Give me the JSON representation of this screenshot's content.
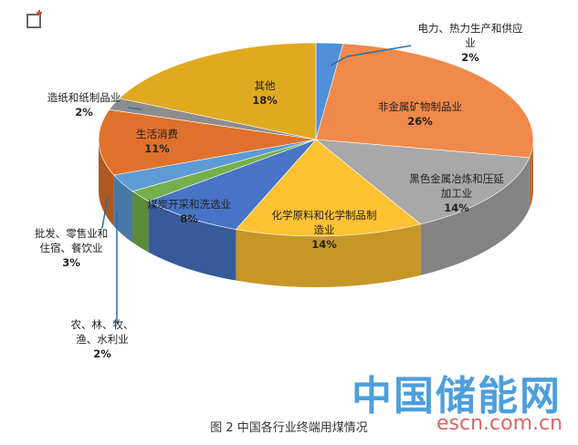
{
  "chart_data": {
    "type": "pie",
    "caption": "图 2 中国各行业终端用煤情况",
    "categories": [
      "电力、热力生产和供应业",
      "非金属矿物制品业",
      "黑色金属冶炼和压延加工业",
      "化学原料和化学制品制造业",
      "煤炭开采和洗选业",
      "农、林、牧、渔、水利业",
      "批发、零售业和住宿、餐饮业",
      "生活消费",
      "造纸和纸制品业",
      "其他"
    ],
    "values": [
      2,
      26,
      14,
      14,
      8,
      2,
      3,
      11,
      2,
      18
    ],
    "value_labels": [
      "2%",
      "26%",
      "14%",
      "14%",
      "8%",
      "2%",
      "3%",
      "11%",
      "2%",
      "18%"
    ],
    "colors": [
      "#4f8fd8",
      "#f0894a",
      "#a8a8a8",
      "#fec232",
      "#4774c6",
      "#76b04c",
      "#5c9bd6",
      "#e0712c",
      "#8d8d8d",
      "#e0aa20"
    ]
  },
  "watermark": {
    "title": "中国储能网",
    "url": "escn.com.cn"
  }
}
